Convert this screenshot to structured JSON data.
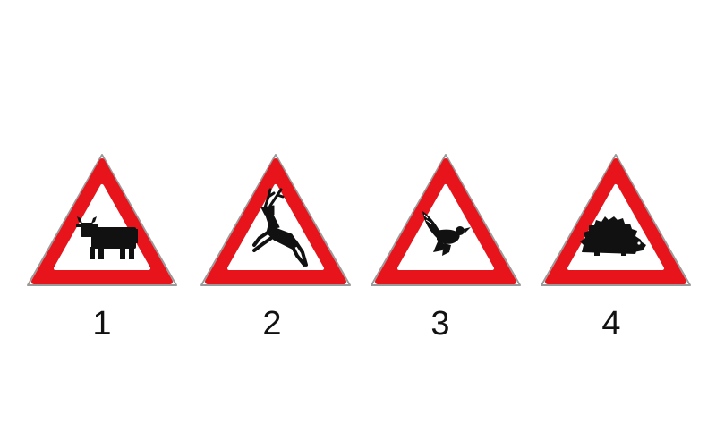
{
  "colors": {
    "sign_border": "#e8141b",
    "sign_fill": "#ffffff",
    "pictogram": "#111111",
    "outline": "#9a9a9a"
  },
  "signs": [
    {
      "number": "1",
      "icon": "cow-icon"
    },
    {
      "number": "2",
      "icon": "deer-icon"
    },
    {
      "number": "3",
      "icon": "bird-icon"
    },
    {
      "number": "4",
      "icon": "hedgehog-icon"
    }
  ]
}
